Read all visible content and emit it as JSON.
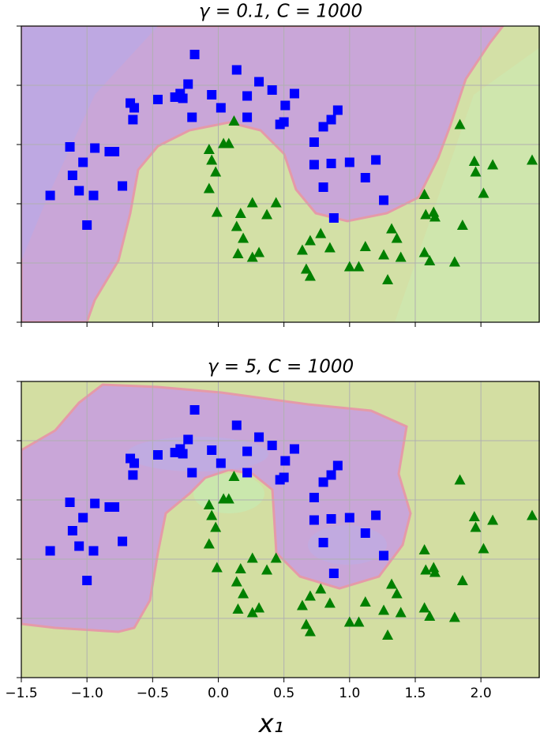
{
  "chart_data": [
    {
      "type": "scatter",
      "title": "γ = 0.1, C = 1000",
      "xlim": [
        -1.5,
        2.45
      ],
      "ylim": [
        -1,
        1.5
      ],
      "xticks": [
        {
          "value": -1.5,
          "label": "−1.5"
        },
        {
          "value": -1.0,
          "label": "−1.0"
        },
        {
          "value": -0.5,
          "label": "−0.5"
        },
        {
          "value": 0,
          "label": "0.0"
        },
        0.5,
        {
          "value": 1.0,
          "label": "1.0"
        },
        1.5,
        {
          "value": 2.0,
          "label": "2.0"
        }
      ],
      "yticks": [
        -1,
        -0.5,
        0,
        0.5,
        1,
        1.5
      ],
      "grid": true,
      "series": [
        {
          "color": "#0000ff",
          "marker": "square",
          "x": [
            -0.18,
            0.14,
            0.31,
            -0.23,
            -0.05,
            -0.29,
            0.41,
            0.58,
            -0.67,
            -0.46,
            -0.33,
            -0.27,
            0.02,
            0.22,
            0.51,
            -0.64,
            -0.65,
            -0.2,
            0.22,
            0.47,
            0.5,
            0.91,
            0.86,
            0.8,
            -1.13,
            -0.94,
            -0.83,
            -0.79,
            -1.03,
            0.73,
            0.73,
            0.86,
            1.0,
            1.2,
            1.12,
            -1.11,
            -1.06,
            -0.95,
            -0.73,
            -1.28,
            -1.0,
            0.8,
            1.26,
            0.88
          ],
          "y": [
            1.26,
            1.13,
            1.03,
            1.01,
            0.92,
            0.93,
            0.96,
            0.93,
            0.85,
            0.88,
            0.9,
            0.89,
            0.81,
            0.91,
            0.83,
            0.81,
            0.71,
            0.73,
            0.73,
            0.67,
            0.69,
            0.79,
            0.71,
            0.65,
            0.48,
            0.47,
            0.44,
            0.44,
            0.35,
            0.52,
            0.33,
            0.34,
            0.35,
            0.37,
            0.22,
            0.24,
            0.11,
            0.07,
            0.15,
            0.07,
            -0.18,
            0.14,
            0.03,
            -0.12
          ]
        },
        {
          "color": "#008000",
          "marker": "triangle",
          "x": [
            0.12,
            0.04,
            0.08,
            -0.07,
            -0.02,
            -0.07,
            -0.05,
            1.84,
            1.95,
            2.09,
            2.39,
            1.96,
            2.02,
            1.57,
            1.64,
            1.58,
            1.65,
            1.86,
            0.26,
            0.44,
            0.37,
            0.17,
            -0.01,
            0.14,
            0.19,
            0.78,
            0.7,
            0.85,
            0.64,
            0.15,
            0.26,
            0.31,
            1.32,
            1.36,
            1.12,
            1.26,
            1.39,
            1.57,
            1.61,
            1.8,
            1.0,
            1.07,
            0.67,
            0.7,
            1.29
          ],
          "y": [
            0.7,
            0.51,
            0.51,
            0.46,
            0.27,
            0.13,
            0.37,
            0.67,
            0.36,
            0.33,
            0.37,
            0.27,
            0.09,
            0.08,
            -0.07,
            -0.09,
            -0.11,
            -0.18,
            0.01,
            0.01,
            -0.09,
            -0.08,
            -0.07,
            -0.19,
            -0.29,
            -0.25,
            -0.31,
            -0.37,
            -0.39,
            -0.42,
            -0.45,
            -0.41,
            -0.21,
            -0.29,
            -0.36,
            -0.43,
            -0.45,
            -0.41,
            -0.48,
            -0.49,
            -0.53,
            -0.53,
            -0.55,
            -0.61,
            -0.64
          ]
        }
      ]
    },
    {
      "type": "scatter",
      "title": "γ = 5, C = 1000",
      "xlabel": "x₁",
      "xlim": [
        -1.5,
        2.45
      ],
      "ylim": [
        -1,
        1.5
      ],
      "xticks": [
        {
          "value": -1.5,
          "label": "−1.5"
        },
        {
          "value": -1.0,
          "label": "−1.0"
        },
        {
          "value": -0.5,
          "label": "−0.5"
        },
        {
          "value": 0,
          "label": "0.0"
        },
        0.5,
        {
          "value": 1.0,
          "label": "1.0"
        },
        1.5,
        {
          "value": 2.0,
          "label": "2.0"
        }
      ],
      "yticks": [
        -1,
        -0.5,
        0,
        0.5,
        1,
        1.5
      ],
      "grid": true,
      "series": [
        {
          "color": "#0000ff",
          "marker": "square",
          "x": [
            -0.18,
            0.14,
            0.31,
            -0.23,
            -0.05,
            -0.29,
            0.41,
            0.58,
            -0.67,
            -0.46,
            -0.33,
            -0.27,
            0.02,
            0.22,
            0.51,
            -0.64,
            -0.65,
            -0.2,
            0.22,
            0.47,
            0.5,
            0.91,
            0.86,
            0.8,
            -1.13,
            -0.94,
            -0.83,
            -0.79,
            -1.03,
            0.73,
            0.73,
            0.86,
            1.0,
            1.2,
            1.12,
            -1.11,
            -1.06,
            -0.95,
            -0.73,
            -1.28,
            -1.0,
            0.8,
            1.26,
            0.88
          ],
          "y": [
            1.26,
            1.13,
            1.03,
            1.01,
            0.92,
            0.93,
            0.96,
            0.93,
            0.85,
            0.88,
            0.9,
            0.89,
            0.81,
            0.91,
            0.83,
            0.81,
            0.71,
            0.73,
            0.73,
            0.67,
            0.69,
            0.79,
            0.71,
            0.65,
            0.48,
            0.47,
            0.44,
            0.44,
            0.35,
            0.52,
            0.33,
            0.34,
            0.35,
            0.37,
            0.22,
            0.24,
            0.11,
            0.07,
            0.15,
            0.07,
            -0.18,
            0.14,
            0.03,
            -0.12
          ]
        },
        {
          "color": "#008000",
          "marker": "triangle",
          "x": [
            0.12,
            0.04,
            0.08,
            -0.07,
            -0.02,
            -0.07,
            -0.05,
            1.84,
            1.95,
            2.09,
            2.39,
            1.96,
            2.02,
            1.57,
            1.64,
            1.58,
            1.65,
            1.86,
            0.26,
            0.44,
            0.37,
            0.17,
            -0.01,
            0.14,
            0.19,
            0.78,
            0.7,
            0.85,
            0.64,
            0.15,
            0.26,
            0.31,
            1.32,
            1.36,
            1.12,
            1.26,
            1.39,
            1.57,
            1.61,
            1.8,
            1.0,
            1.07,
            0.67,
            0.7,
            1.29
          ],
          "y": [
            0.7,
            0.51,
            0.51,
            0.46,
            0.27,
            0.13,
            0.37,
            0.67,
            0.36,
            0.33,
            0.37,
            0.27,
            0.09,
            0.08,
            -0.07,
            -0.09,
            -0.11,
            -0.18,
            0.01,
            0.01,
            -0.09,
            -0.08,
            -0.07,
            -0.19,
            -0.29,
            -0.25,
            -0.31,
            -0.37,
            -0.39,
            -0.42,
            -0.45,
            -0.41,
            -0.21,
            -0.29,
            -0.36,
            -0.43,
            -0.45,
            -0.41,
            -0.48,
            -0.49,
            -0.53,
            -0.53,
            -0.55,
            -0.61,
            -0.64
          ]
        }
      ]
    }
  ]
}
